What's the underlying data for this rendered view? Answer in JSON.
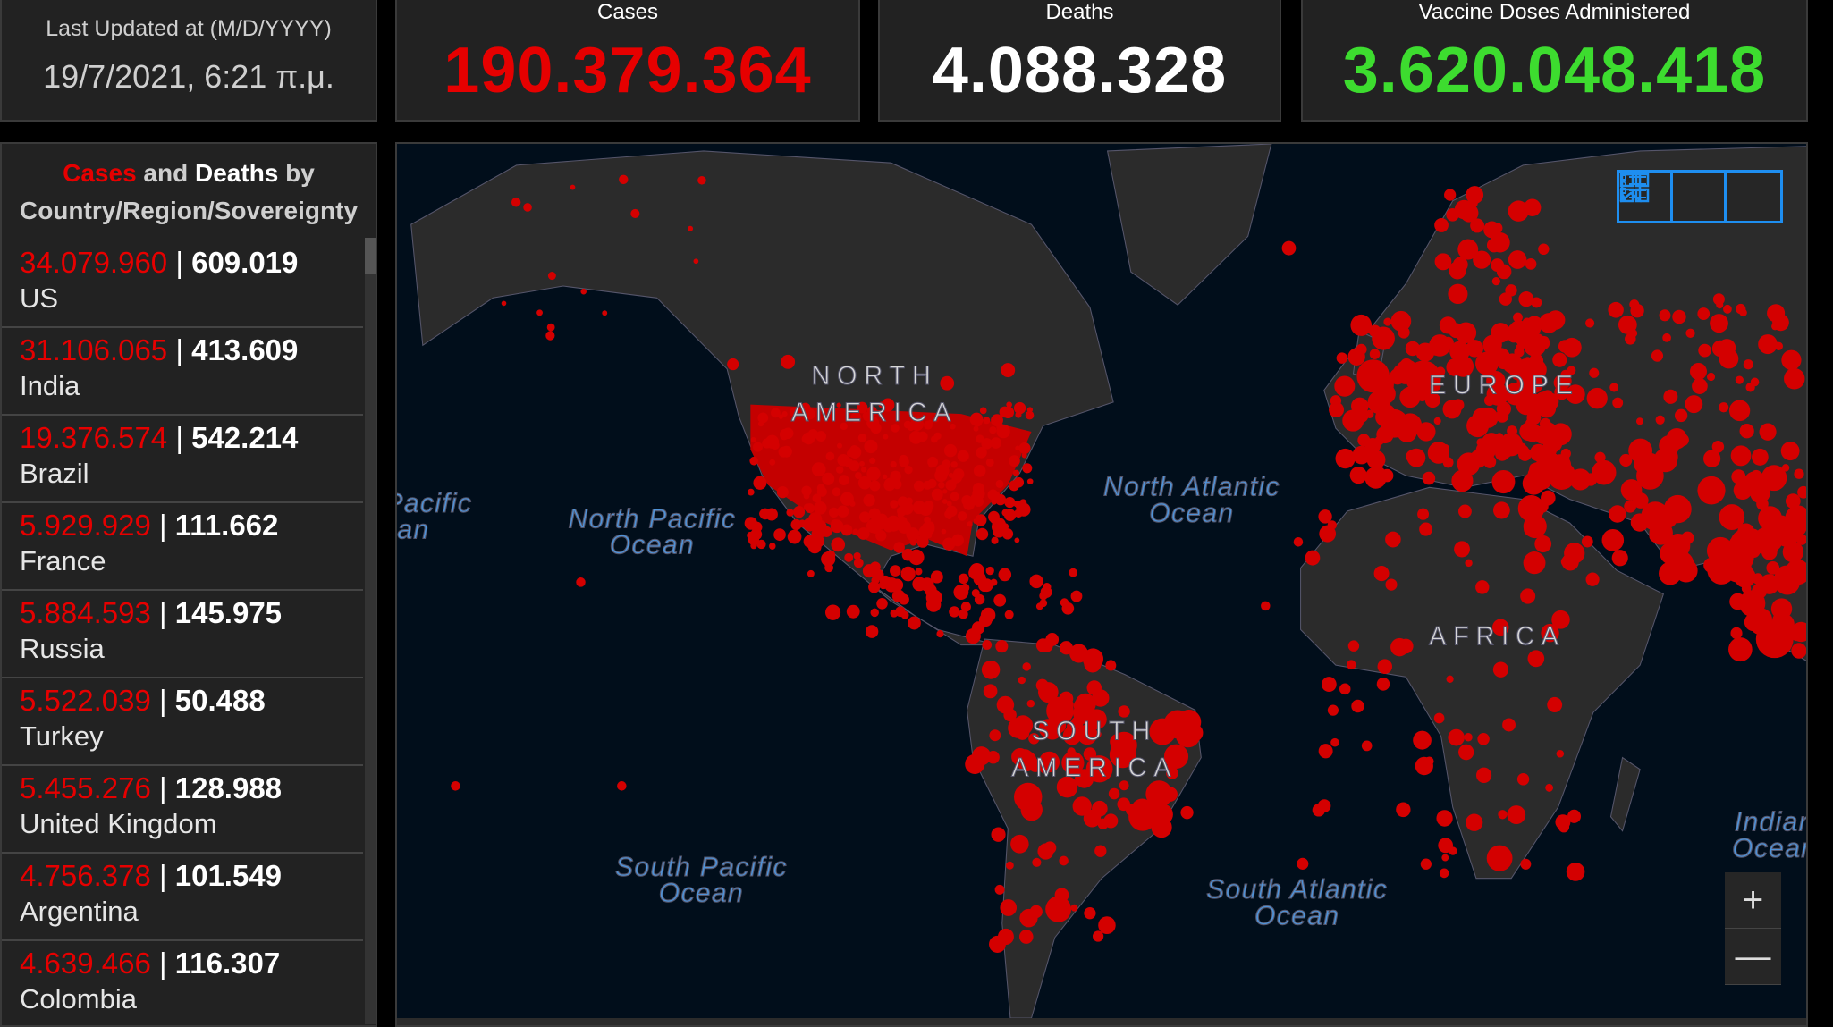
{
  "last_updated": {
    "label": "Last Updated at (M/D/YYYY)",
    "value": "19/7/2021, 6:21 π.μ."
  },
  "stats": {
    "cases": {
      "label": "Cases",
      "value": "190.379.364",
      "color": "#e60000"
    },
    "deaths": {
      "label": "Deaths",
      "value": "4.088.328",
      "color": "#ffffff"
    },
    "vaccines": {
      "label": "Vaccine Doses Administered",
      "value": "3.620.048.418",
      "color": "#3ddc2f"
    }
  },
  "list": {
    "title_cases": "Cases",
    "title_and": " and ",
    "title_deaths": "Deaths",
    "title_by": " by",
    "title_line2": "Country/Region/Sovereignty",
    "rows": [
      {
        "cases": "34.079.960",
        "deaths": "609.019",
        "name": "US"
      },
      {
        "cases": "31.106.065",
        "deaths": "413.609",
        "name": "India"
      },
      {
        "cases": "19.376.574",
        "deaths": "542.214",
        "name": "Brazil"
      },
      {
        "cases": "5.929.929",
        "deaths": "111.662",
        "name": "France"
      },
      {
        "cases": "5.884.593",
        "deaths": "145.975",
        "name": "Russia"
      },
      {
        "cases": "5.522.039",
        "deaths": "50.488",
        "name": "Turkey"
      },
      {
        "cases": "5.455.276",
        "deaths": "128.988",
        "name": "United Kingdom"
      },
      {
        "cases": "4.756.378",
        "deaths": "101.549",
        "name": "Argentina"
      },
      {
        "cases": "4.639.466",
        "deaths": "116.307",
        "name": "Colombia"
      }
    ]
  },
  "map": {
    "continents": [
      "NORTH",
      "AMERICA",
      "SOUTH",
      "AMERICA",
      "EUROPE",
      "AFRICA"
    ],
    "oceans": {
      "pacific_left_1": "Pacific",
      "pacific_left_2": "an",
      "np1": "North Pacific",
      "np2": "Ocean",
      "na1": "North Atlantic",
      "na2": "Ocean",
      "sp1": "South Pacific",
      "sp2": "Ocean",
      "sa1": "South Atlantic",
      "sa2": "Ocean",
      "io1": "Indian",
      "io2": "Ocean"
    },
    "widgets": [
      "bookmark-icon",
      "legend-list-icon",
      "basemap-gallery-icon"
    ],
    "zoom_in": "+",
    "zoom_out": "—",
    "dot_color": "#d40000",
    "land_color": "#2b2b2b",
    "ocean_color": "#010e1b"
  }
}
